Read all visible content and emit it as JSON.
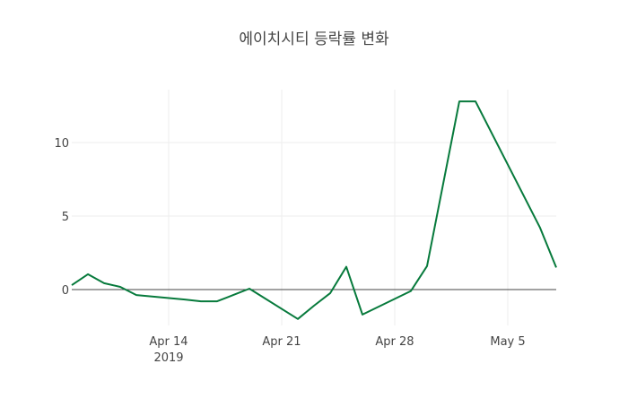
{
  "chart_data": {
    "type": "line",
    "title": "에이치시티 등락률 변화",
    "xlabel": "",
    "ylabel": "",
    "x": [
      "2019-04-08",
      "2019-04-09",
      "2019-04-10",
      "2019-04-11",
      "2019-04-12",
      "2019-04-15",
      "2019-04-16",
      "2019-04-17",
      "2019-04-18",
      "2019-04-19",
      "2019-04-22",
      "2019-04-23",
      "2019-04-24",
      "2019-04-25",
      "2019-04-26",
      "2019-04-29",
      "2019-04-30",
      "2019-05-02",
      "2019-05-03",
      "2019-05-07",
      "2019-05-08"
    ],
    "series": [
      {
        "name": "등락률",
        "color": "#077a3c",
        "values": [
          0.3,
          1.04,
          0.43,
          0.18,
          -0.37,
          -0.68,
          -0.8,
          -0.8,
          -0.37,
          0.06,
          -2.0,
          -1.1,
          -0.25,
          1.55,
          -1.7,
          -0.1,
          1.6,
          12.8,
          12.8,
          4.2,
          1.5
        ]
      }
    ],
    "xlim": [
      "2019-04-08",
      "2019-05-08"
    ],
    "ylim": [
      -2.44,
      13.6
    ],
    "xticks": [
      {
        "date": "2019-04-14",
        "label": "Apr 14",
        "sublabel": "2019"
      },
      {
        "date": "2019-04-21",
        "label": "Apr 21"
      },
      {
        "date": "2019-04-28",
        "label": "Apr 28"
      },
      {
        "date": "2019-05-05",
        "label": "May 5"
      }
    ],
    "yticks": [
      {
        "value": 0,
        "label": "0"
      },
      {
        "value": 5,
        "label": "5"
      },
      {
        "value": 10,
        "label": "10"
      }
    ],
    "grid": true,
    "legend": "none"
  }
}
